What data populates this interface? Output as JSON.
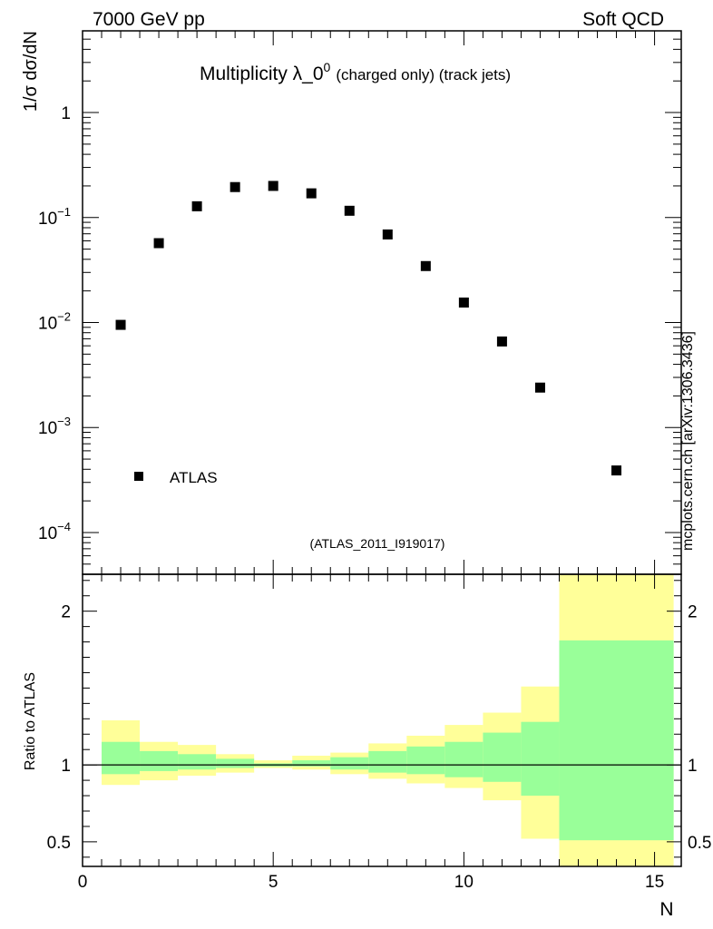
{
  "header": {
    "left": "7000 GeV pp",
    "right": "Soft QCD"
  },
  "title": {
    "main": "Multiplicity λ_0",
    "sup": "0",
    "sub": "(charged only) (track jets)"
  },
  "side_label": "mcplots.cern.ch [arXiv:1306.3436]",
  "chart_data": [
    {
      "type": "scatter",
      "panel": "main",
      "ylabel": "1/σ dσ/dN",
      "yscale": "log",
      "ylim": [
        4e-05,
        6
      ],
      "xlim": [
        0,
        15.7
      ],
      "legend": {
        "position": "bottom-left",
        "entries": [
          "ATLAS"
        ]
      },
      "watermark": "(ATLAS_2011_I919017)",
      "ytick_labels": [
        {
          "value": 1,
          "base": "1",
          "exp": ""
        },
        {
          "value": 0.1,
          "base": "10",
          "exp": "−1"
        },
        {
          "value": 0.01,
          "base": "10",
          "exp": "−2"
        },
        {
          "value": 0.001,
          "base": "10",
          "exp": "−3"
        },
        {
          "value": 0.0001,
          "base": "10",
          "exp": "−4"
        }
      ],
      "series": [
        {
          "name": "ATLAS",
          "color": "#000000",
          "x": [
            1,
            2,
            3,
            4,
            5,
            6,
            7,
            8,
            9,
            10,
            11,
            12,
            14
          ],
          "y": [
            0.0095,
            0.057,
            0.128,
            0.195,
            0.2,
            0.17,
            0.116,
            0.069,
            0.0345,
            0.0155,
            0.0066,
            0.0024,
            0.00039
          ]
        }
      ]
    },
    {
      "type": "area",
      "panel": "ratio",
      "ylabel": "Ratio to ATLAS",
      "xlabel": "N",
      "xlim": [
        0,
        15.7
      ],
      "ylim": [
        0.34,
        2.24
      ],
      "xtick_labels": [
        "0",
        "5",
        "10",
        "15"
      ],
      "ytick_labels": [
        "0.5",
        "1",
        "2"
      ],
      "ytick_values": [
        0.5,
        1,
        2
      ],
      "reference_line": 1,
      "colors": {
        "outer_band": "#ffff99",
        "inner_band": "#99ff99",
        "line": "#000000"
      },
      "bins": [
        {
          "lo": 0.5,
          "hi": 1.5,
          "outer": [
            0.87,
            1.29
          ],
          "inner": [
            0.94,
            1.15
          ]
        },
        {
          "lo": 1.5,
          "hi": 2.5,
          "outer": [
            0.9,
            1.15
          ],
          "inner": [
            0.96,
            1.09
          ]
        },
        {
          "lo": 2.5,
          "hi": 3.5,
          "outer": [
            0.93,
            1.13
          ],
          "inner": [
            0.97,
            1.07
          ]
        },
        {
          "lo": 3.5,
          "hi": 4.5,
          "outer": [
            0.95,
            1.07
          ],
          "inner": [
            0.98,
            1.04
          ]
        },
        {
          "lo": 4.5,
          "hi": 5.5,
          "outer": [
            0.98,
            1.03
          ],
          "inner": [
            0.99,
            1.01
          ]
        },
        {
          "lo": 5.5,
          "hi": 6.5,
          "outer": [
            0.97,
            1.06
          ],
          "inner": [
            0.99,
            1.03
          ]
        },
        {
          "lo": 6.5,
          "hi": 7.5,
          "outer": [
            0.94,
            1.08
          ],
          "inner": [
            0.97,
            1.05
          ]
        },
        {
          "lo": 7.5,
          "hi": 8.5,
          "outer": [
            0.91,
            1.14
          ],
          "inner": [
            0.95,
            1.09
          ]
        },
        {
          "lo": 8.5,
          "hi": 9.5,
          "outer": [
            0.88,
            1.19
          ],
          "inner": [
            0.94,
            1.12
          ]
        },
        {
          "lo": 9.5,
          "hi": 10.5,
          "outer": [
            0.85,
            1.26
          ],
          "inner": [
            0.92,
            1.15
          ]
        },
        {
          "lo": 10.5,
          "hi": 11.5,
          "outer": [
            0.77,
            1.34
          ],
          "inner": [
            0.89,
            1.21
          ]
        },
        {
          "lo": 11.5,
          "hi": 12.5,
          "outer": [
            0.52,
            1.51
          ],
          "inner": [
            0.8,
            1.28
          ]
        },
        {
          "lo": 12.5,
          "hi": 15.5,
          "outer": [
            0.32,
            2.3
          ],
          "inner": [
            0.51,
            1.81
          ]
        }
      ]
    }
  ]
}
